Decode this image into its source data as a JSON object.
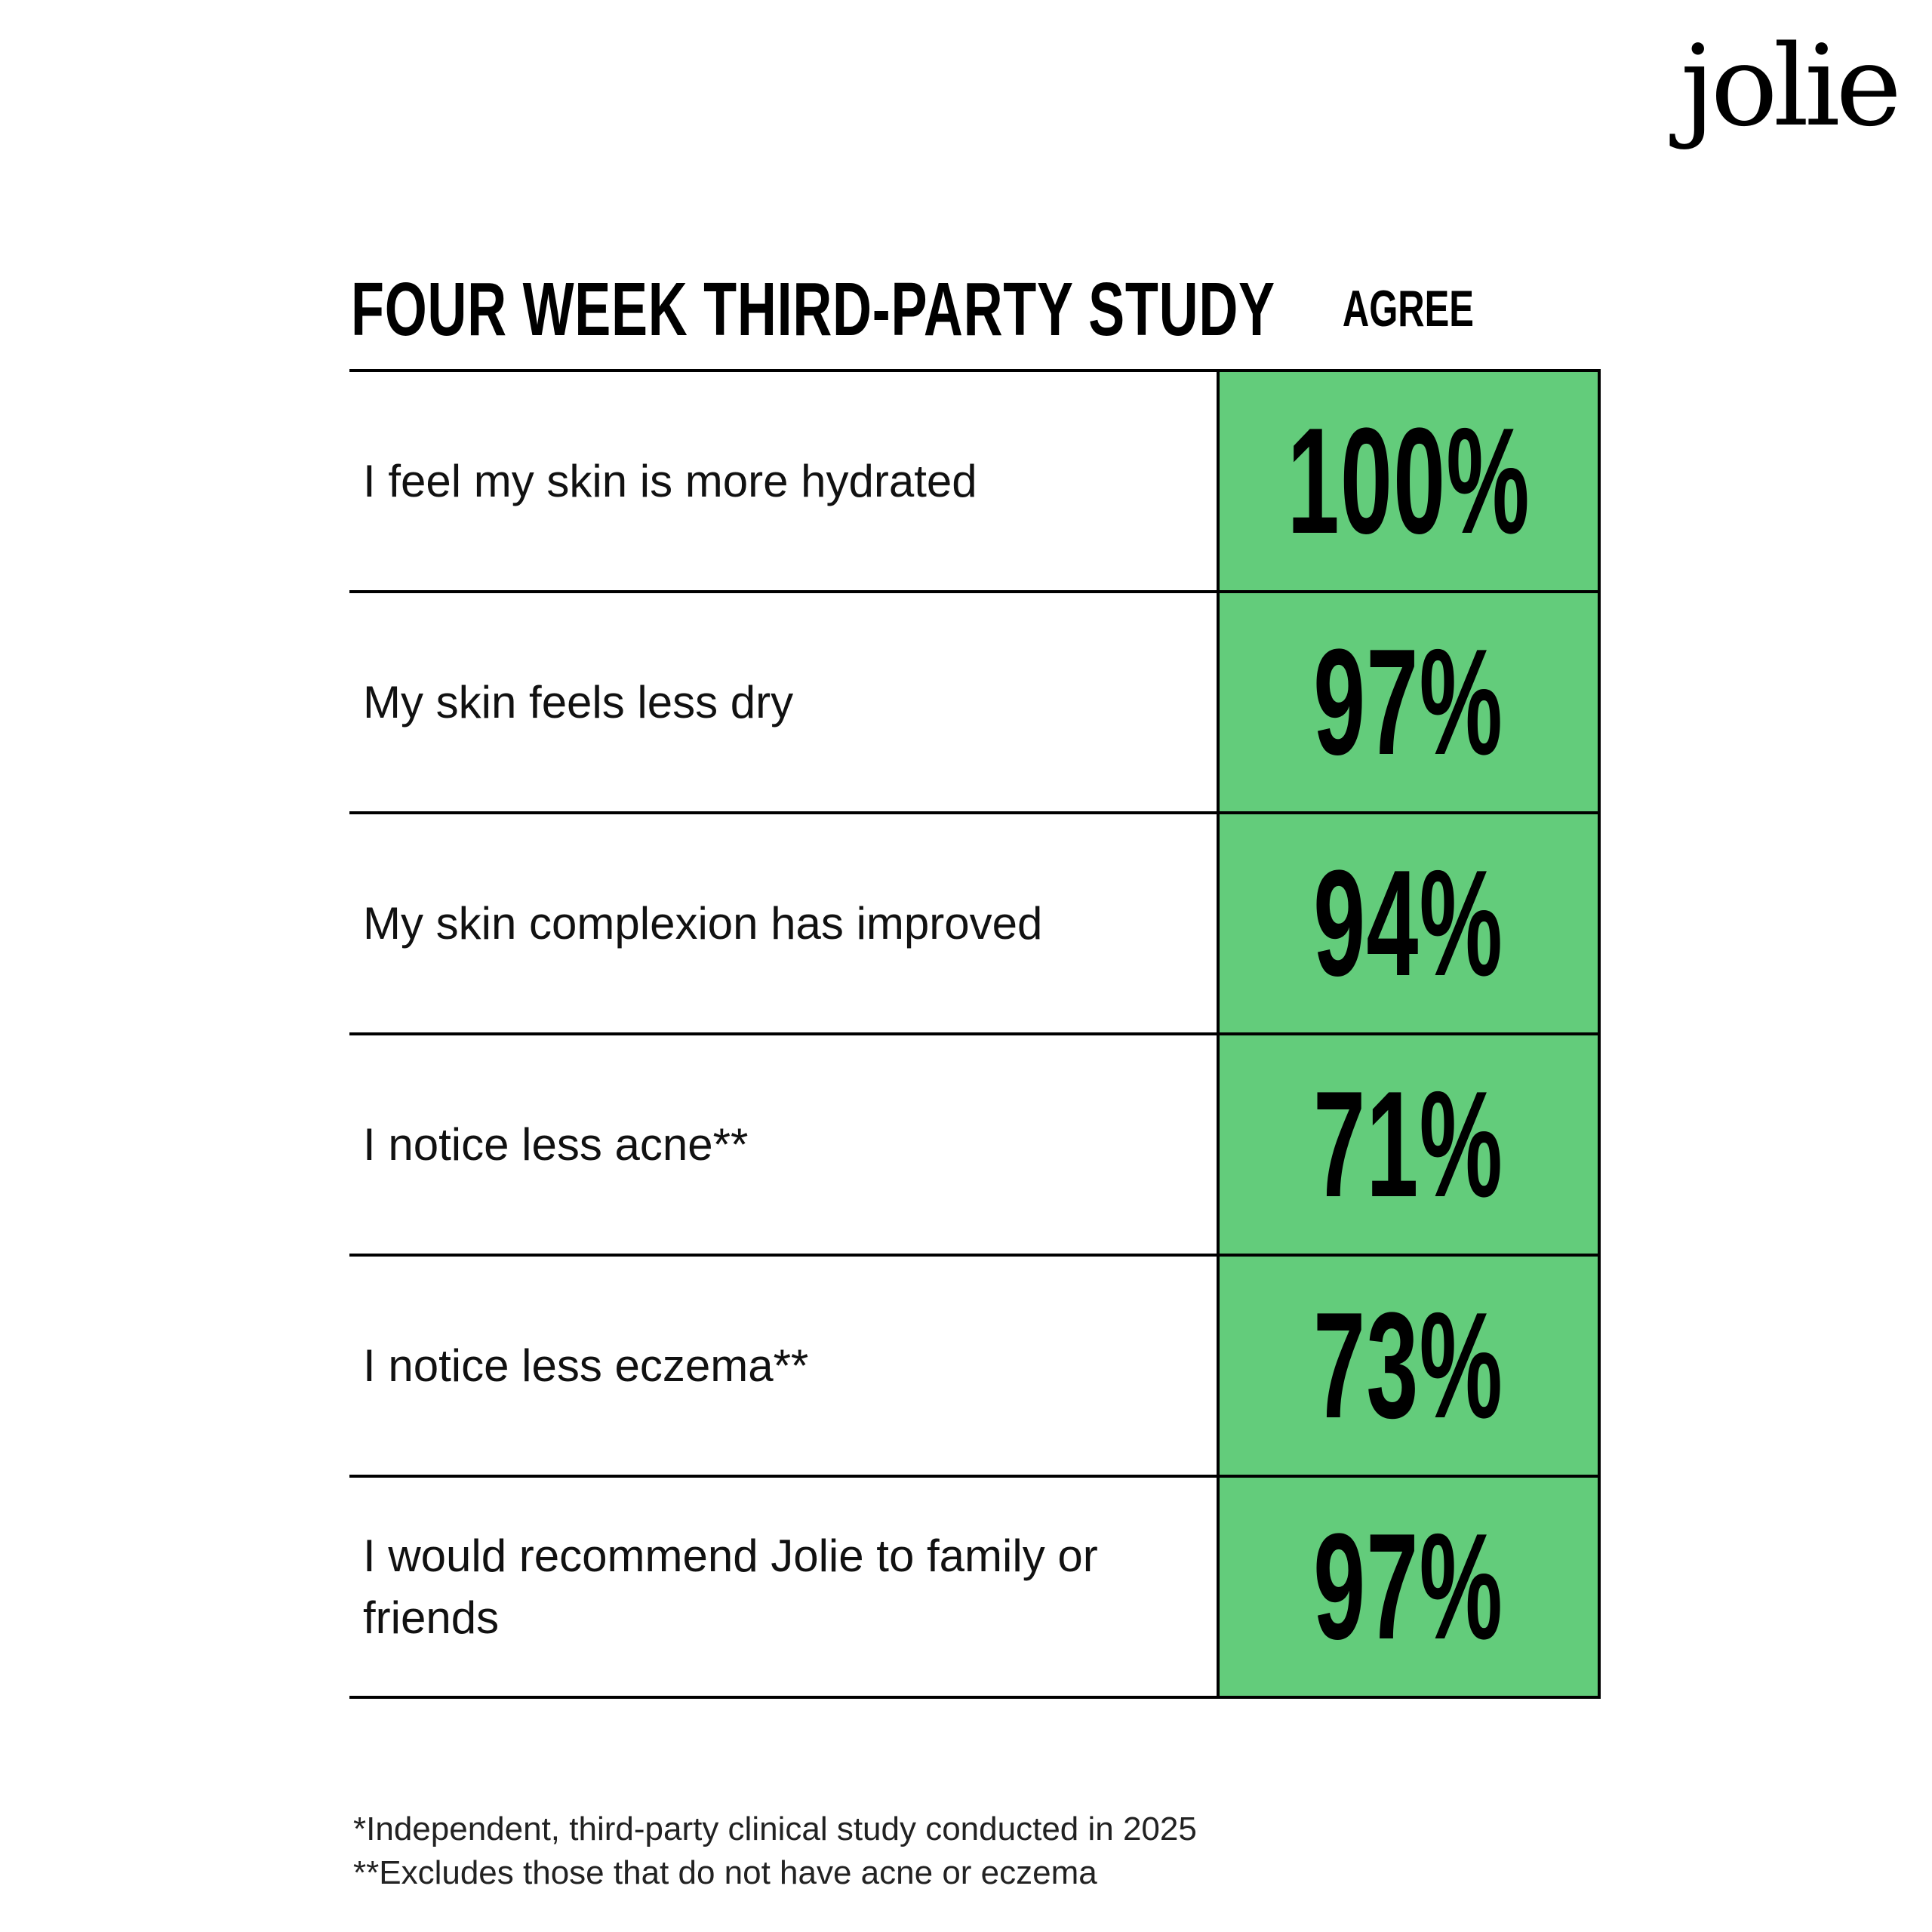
{
  "brand": {
    "logo_text": "jolie"
  },
  "chart_data": {
    "type": "table",
    "title": "FOUR WEEK THIRD-PARTY STUDY",
    "value_header": "AGREE",
    "rows": [
      {
        "statement": "I feel my skin is more hydrated",
        "value": 100,
        "label": "100%"
      },
      {
        "statement": "My skin feels less dry",
        "value": 97,
        "label": "97%"
      },
      {
        "statement": "My skin complexion has improved",
        "value": 94,
        "label": "94%"
      },
      {
        "statement": "I notice less acne**",
        "value": 71,
        "label": "71%"
      },
      {
        "statement": "I notice less eczema**",
        "value": 73,
        "label": "73%"
      },
      {
        "statement": "I would recommend Jolie to family or friends",
        "value": 97,
        "label": "97%"
      }
    ],
    "highlight_color": "#63cc7b"
  },
  "footnotes": [
    "*Independent, third-party clinical study conducted in 2025",
    "**Excludes those that do not have acne or eczema"
  ]
}
